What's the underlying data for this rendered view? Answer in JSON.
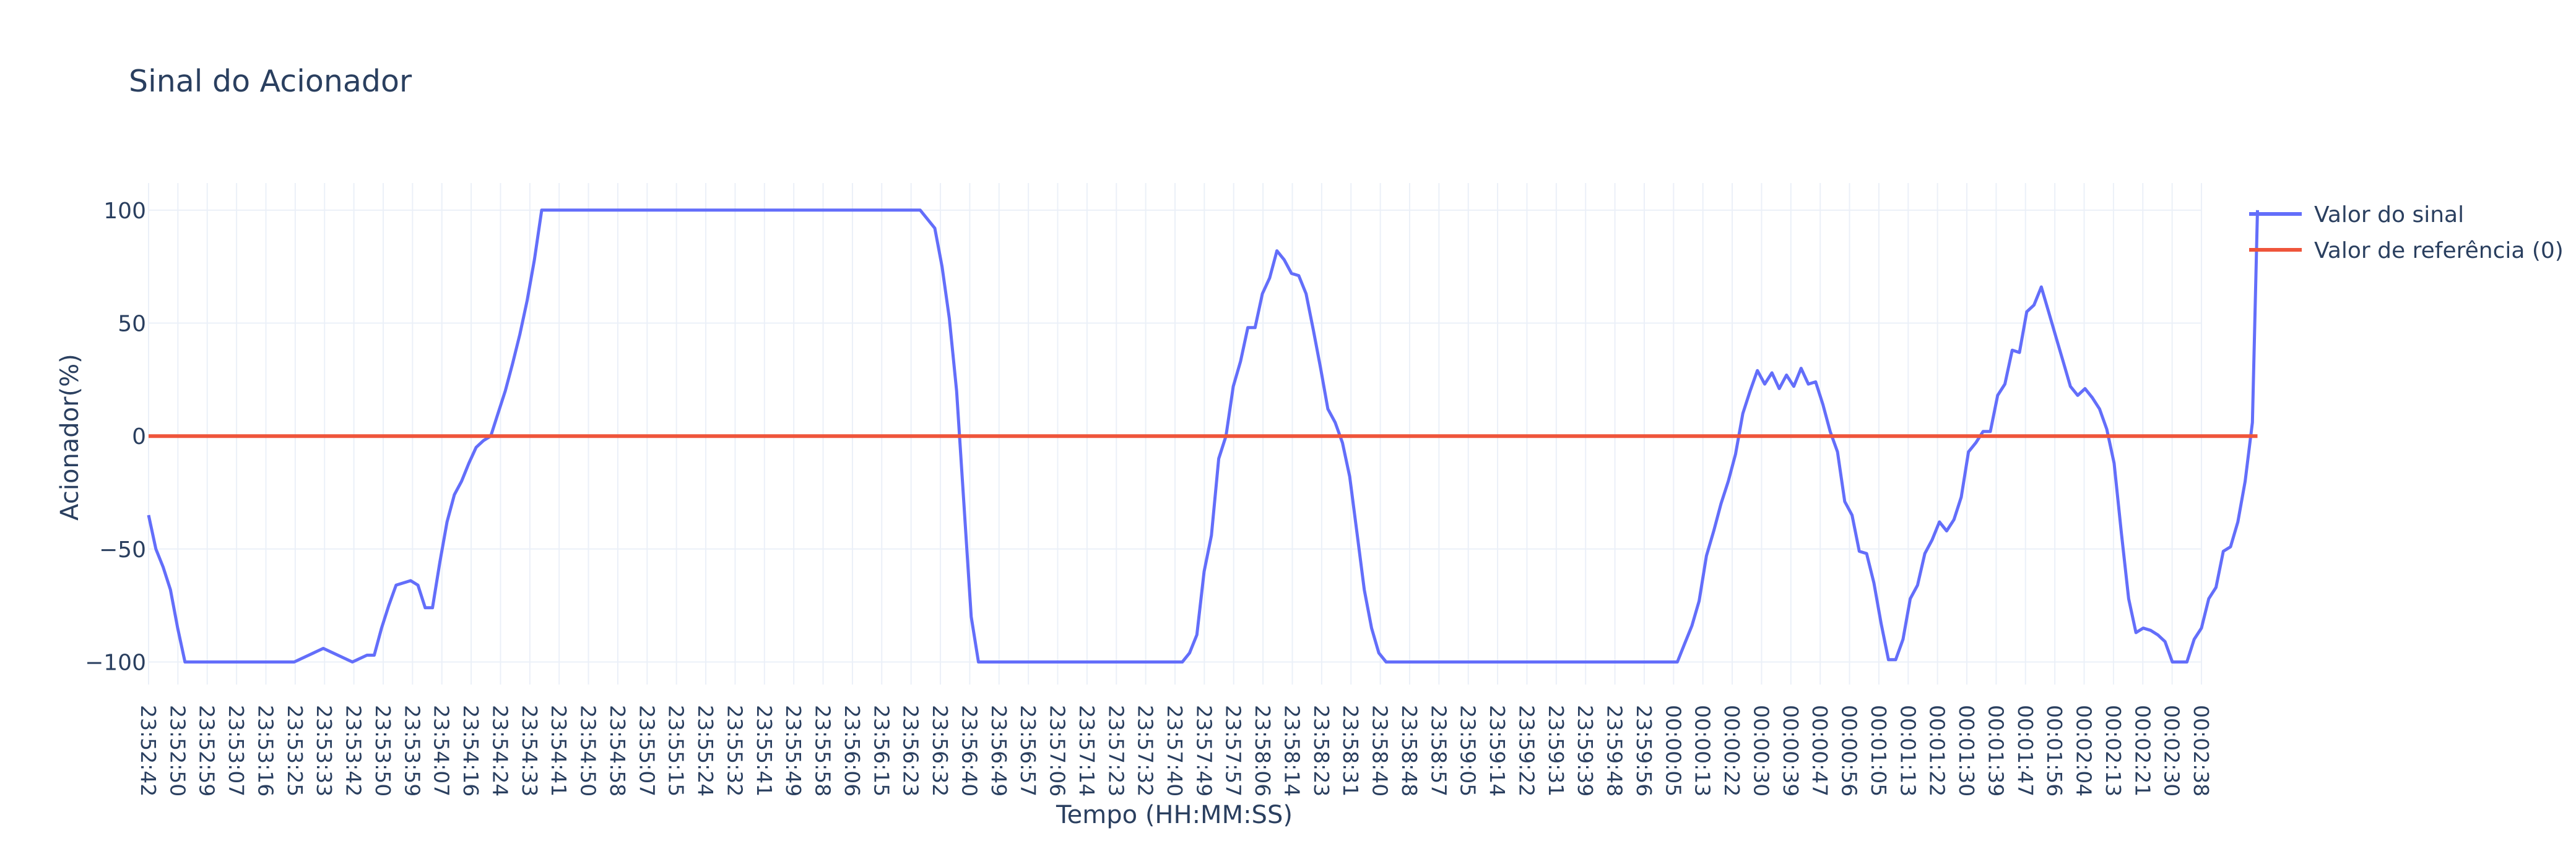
{
  "chart_data": {
    "type": "line",
    "title": "Sinal do Acionador",
    "xlabel": "Tempo (HH:MM:SS)",
    "ylabel": "Acionador(%)",
    "ylim": [
      -110,
      112
    ],
    "yticks": [
      -100,
      -50,
      0,
      50,
      100
    ],
    "ytick_labels": [
      "−100",
      "−50",
      "0",
      "50",
      "100"
    ],
    "grid": true,
    "legend_position": "top-right",
    "x_tick_labels": [
      "23:52:42",
      "23:52:50",
      "23:52:59",
      "23:53:07",
      "23:53:16",
      "23:53:25",
      "23:53:33",
      "23:53:42",
      "23:53:50",
      "23:53:59",
      "23:54:07",
      "23:54:16",
      "23:54:24",
      "23:54:33",
      "23:54:41",
      "23:54:50",
      "23:54:58",
      "23:55:07",
      "23:55:15",
      "23:55:24",
      "23:55:32",
      "23:55:41",
      "23:55:49",
      "23:55:58",
      "23:56:06",
      "23:56:15",
      "23:56:23",
      "23:56:32",
      "23:56:40",
      "23:56:49",
      "23:56:57",
      "23:57:06",
      "23:57:14",
      "23:57:23",
      "23:57:32",
      "23:57:40",
      "23:57:49",
      "23:57:57",
      "23:58:06",
      "23:58:14",
      "23:58:23",
      "23:58:31",
      "23:58:40",
      "23:58:48",
      "23:58:57",
      "23:59:05",
      "23:59:14",
      "23:59:22",
      "23:59:31",
      "23:59:39",
      "23:59:48",
      "23:59:56",
      "00:00:05",
      "00:00:13",
      "00:00:22",
      "00:00:30",
      "00:00:39",
      "00:00:47",
      "00:00:56",
      "00:01:05",
      "00:01:13",
      "00:01:22",
      "00:01:30",
      "00:01:39",
      "00:01:47",
      "00:01:56",
      "00:02:04",
      "00:02:13",
      "00:02:21",
      "00:02:30",
      "00:02:38"
    ],
    "x_range": [
      0,
      282
    ],
    "series": [
      {
        "name": "Valor do sinal",
        "color": "#636efa",
        "points": [
          [
            0,
            -35
          ],
          [
            1,
            -50
          ],
          [
            2,
            -58
          ],
          [
            3,
            -68
          ],
          [
            4,
            -85
          ],
          [
            5,
            -100
          ],
          [
            10,
            -100
          ],
          [
            15,
            -100
          ],
          [
            20,
            -100
          ],
          [
            22,
            -97
          ],
          [
            24,
            -94
          ],
          [
            26,
            -97
          ],
          [
            28,
            -100
          ],
          [
            30,
            -97
          ],
          [
            31,
            -97
          ],
          [
            32,
            -85
          ],
          [
            33,
            -75
          ],
          [
            34,
            -66
          ],
          [
            36,
            -64
          ],
          [
            37,
            -66
          ],
          [
            38,
            -76
          ],
          [
            39,
            -76
          ],
          [
            40,
            -56
          ],
          [
            41,
            -38
          ],
          [
            42,
            -26
          ],
          [
            43,
            -20
          ],
          [
            44,
            -12
          ],
          [
            45,
            -5
          ],
          [
            46,
            -2
          ],
          [
            47,
            0
          ],
          [
            48,
            10
          ],
          [
            49,
            20
          ],
          [
            50,
            32
          ],
          [
            51,
            45
          ],
          [
            52,
            60
          ],
          [
            53,
            78
          ],
          [
            54,
            100
          ],
          [
            100,
            100
          ],
          [
            106,
            100
          ],
          [
            108,
            92
          ],
          [
            109,
            75
          ],
          [
            110,
            52
          ],
          [
            111,
            20
          ],
          [
            112,
            -30
          ],
          [
            113,
            -80
          ],
          [
            114,
            -100
          ],
          [
            120,
            -100
          ],
          [
            140,
            -100
          ],
          [
            142,
            -100
          ],
          [
            143,
            -96
          ],
          [
            144,
            -88
          ],
          [
            145,
            -60
          ],
          [
            146,
            -44
          ],
          [
            147,
            -10
          ],
          [
            148,
            0
          ],
          [
            149,
            22
          ],
          [
            150,
            33
          ],
          [
            151,
            48
          ],
          [
            152,
            48
          ],
          [
            153,
            63
          ],
          [
            154,
            70
          ],
          [
            155,
            82
          ],
          [
            156,
            78
          ],
          [
            157,
            72
          ],
          [
            158,
            71
          ],
          [
            159,
            63
          ],
          [
            160,
            47
          ],
          [
            161,
            30
          ],
          [
            162,
            12
          ],
          [
            163,
            6
          ],
          [
            164,
            -3
          ],
          [
            165,
            -18
          ],
          [
            166,
            -43
          ],
          [
            167,
            -68
          ],
          [
            168,
            -85
          ],
          [
            169,
            -96
          ],
          [
            170,
            -100
          ],
          [
            200,
            -100
          ],
          [
            210,
            -100
          ],
          [
            211,
            -92
          ],
          [
            212,
            -84
          ],
          [
            213,
            -73
          ],
          [
            214,
            -53
          ],
          [
            215,
            -42
          ],
          [
            216,
            -30
          ],
          [
            217,
            -20
          ],
          [
            218,
            -8
          ],
          [
            219,
            10
          ],
          [
            220,
            20
          ],
          [
            221,
            29
          ],
          [
            222,
            23
          ],
          [
            223,
            28
          ],
          [
            224,
            21
          ],
          [
            225,
            27
          ],
          [
            226,
            22
          ],
          [
            227,
            30
          ],
          [
            228,
            23
          ],
          [
            229,
            24
          ],
          [
            230,
            14
          ],
          [
            231,
            2
          ],
          [
            232,
            -7
          ],
          [
            233,
            -29
          ],
          [
            234,
            -35
          ],
          [
            235,
            -51
          ],
          [
            236,
            -52
          ],
          [
            237,
            -65
          ],
          [
            238,
            -83
          ],
          [
            239,
            -99
          ],
          [
            240,
            -99
          ],
          [
            241,
            -90
          ],
          [
            242,
            -72
          ],
          [
            243,
            -66
          ],
          [
            244,
            -52
          ],
          [
            245,
            -46
          ],
          [
            246,
            -38
          ],
          [
            247,
            -42
          ],
          [
            248,
            -37
          ],
          [
            249,
            -27
          ],
          [
            250,
            -7
          ],
          [
            251,
            -3
          ],
          [
            252,
            2
          ],
          [
            253,
            2
          ],
          [
            254,
            18
          ],
          [
            255,
            23
          ],
          [
            256,
            38
          ],
          [
            257,
            37
          ],
          [
            258,
            55
          ],
          [
            259,
            58
          ],
          [
            260,
            66
          ],
          [
            261,
            55
          ],
          [
            262,
            44
          ],
          [
            263,
            33
          ],
          [
            264,
            22
          ],
          [
            265,
            18
          ],
          [
            266,
            21
          ],
          [
            267,
            17
          ],
          [
            268,
            12
          ],
          [
            269,
            3
          ],
          [
            270,
            -12
          ],
          [
            271,
            -43
          ],
          [
            272,
            -72
          ],
          [
            273,
            -87
          ],
          [
            274,
            -85
          ],
          [
            275,
            -86
          ],
          [
            276,
            -88
          ],
          [
            277,
            -91
          ],
          [
            278,
            -100
          ],
          [
            279,
            -100
          ],
          [
            280,
            -100
          ],
          [
            281,
            -90
          ],
          [
            282,
            -85
          ],
          [
            283,
            -72
          ],
          [
            284,
            -67
          ],
          [
            285,
            -51
          ],
          [
            286,
            -49
          ],
          [
            287,
            -38
          ],
          [
            288,
            -20
          ],
          [
            289,
            6
          ],
          [
            289.7,
            100
          ]
        ]
      },
      {
        "name": "Valor de referência (0)",
        "color": "#ef553b",
        "points": [
          [
            0,
            0
          ],
          [
            289.7,
            0
          ]
        ]
      }
    ]
  }
}
